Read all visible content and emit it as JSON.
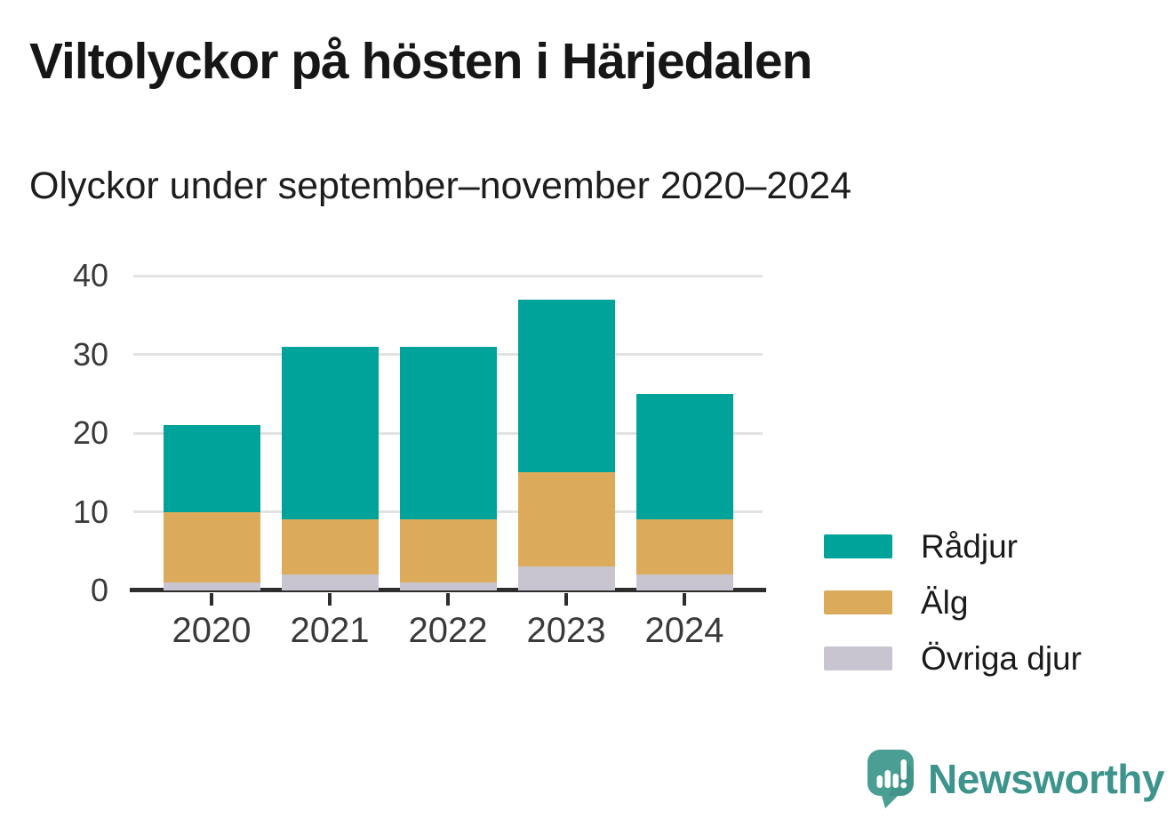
{
  "header": {
    "title": "Viltolyckor på hösten i Härjedalen",
    "subtitle": "Olyckor under september–november 2020–2024"
  },
  "chart_data": {
    "type": "bar",
    "stacked": true,
    "title": "Viltolyckor på hösten i Härjedalen",
    "subtitle": "Olyckor under september–november 2020–2024",
    "categories": [
      "2020",
      "2021",
      "2022",
      "2023",
      "2024"
    ],
    "series": [
      {
        "name": "Rådjur",
        "color": "#00a39a",
        "values": [
          11,
          22,
          22,
          22,
          16
        ]
      },
      {
        "name": "Älg",
        "color": "#dbab5b",
        "values": [
          9,
          7,
          8,
          12,
          7
        ]
      },
      {
        "name": "Övriga djur",
        "color": "#c9c5d0",
        "values": [
          1,
          2,
          1,
          3,
          2
        ]
      }
    ],
    "stack_totals": [
      21,
      31,
      31,
      37,
      25
    ],
    "yticks": [
      0,
      10,
      20,
      30,
      40
    ],
    "ylim": [
      0,
      40
    ],
    "xlabel": "",
    "ylabel": "",
    "grid": "horizontal",
    "legend_position": "right"
  },
  "footer": {
    "brand": "Newsworthy"
  },
  "colors": {
    "radjur": "#00a39a",
    "alg": "#dbab5b",
    "ovriga_djur": "#c9c5d0",
    "gridline": "#e2e2e2",
    "axis_line": "#2d2d2d",
    "axis_text": "#3a3a3a",
    "title_text": "#161616",
    "brand_teal": "#3d948c",
    "logo_bubble": "#4a9e94"
  }
}
